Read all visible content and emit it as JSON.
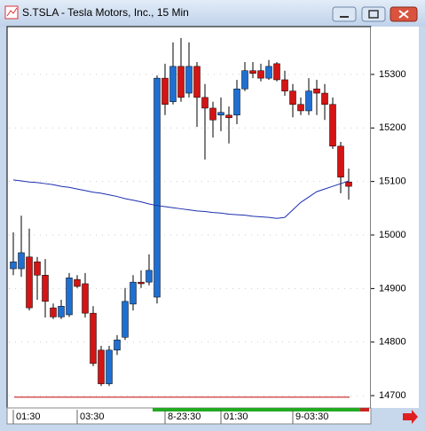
{
  "chart_data": {
    "type": "candlestick",
    "title": "S.TSLA - Tesla Motors, Inc., 15 Min",
    "categories": [
      "01:30",
      null,
      null,
      null,
      null,
      null,
      null,
      null,
      "03:30",
      null,
      null,
      null,
      null,
      null,
      null,
      null,
      null,
      null,
      null,
      "8-23:30",
      null,
      null,
      null,
      null,
      null,
      null,
      "01:30",
      null,
      null,
      null,
      null,
      null,
      null,
      null,
      null,
      "9-03:30",
      null,
      null,
      null,
      null,
      null,
      null,
      null
    ],
    "open": [
      14937,
      14937,
      14959,
      14950,
      14925,
      14864,
      14847,
      14851,
      14917,
      14909,
      14854,
      14785,
      14722,
      14785,
      14809,
      14871,
      14912,
      14912,
      14884,
      15293,
      15249,
      15315,
      15265,
      15315,
      15257,
      15237,
      15224,
      15224,
      15224,
      15273,
      15307,
      15307,
      15293,
      15320,
      15290,
      15269,
      15244,
      15232,
      15273,
      15265,
      15244,
      15166,
      15099
    ],
    "high": [
      15005,
      15036,
      15012,
      14959,
      14955,
      14872,
      14879,
      14929,
      14925,
      14929,
      14867,
      14793,
      14793,
      14813,
      14901,
      14925,
      14934,
      14964,
      15298,
      15320,
      15360,
      15368,
      15360,
      15323,
      15282,
      15249,
      15257,
      15240,
      15290,
      15323,
      15323,
      15320,
      15327,
      15323,
      15307,
      15282,
      15257,
      15293,
      15290,
      15282,
      15257,
      15174,
      15124
    ],
    "low": [
      14925,
      14922,
      14859,
      14879,
      14846,
      14843,
      14843,
      14847,
      14901,
      14846,
      14755,
      14718,
      14718,
      14776,
      14804,
      14859,
      14901,
      14906,
      14872,
      15224,
      15244,
      15249,
      15257,
      15202,
      15141,
      15182,
      15194,
      15171,
      15207,
      15269,
      15293,
      15287,
      15290,
      15287,
      15260,
      15220,
      15224,
      15224,
      15224,
      15215,
      15161,
      15078,
      15066
    ],
    "close": [
      14950,
      14967,
      14864,
      14925,
      14876,
      14847,
      14867,
      14920,
      14904,
      14854,
      14760,
      14722,
      14785,
      14804,
      14876,
      14912,
      14909,
      14934,
      15293,
      15244,
      15315,
      15257,
      15315,
      15257,
      15237,
      15215,
      15229,
      15219,
      15273,
      15307,
      15302,
      15293,
      15315,
      15290,
      15269,
      15244,
      15232,
      15269,
      15265,
      15244,
      15166,
      15108,
      15091
    ],
    "up_color": "#1f6fd1",
    "down_color": "#d41515",
    "moving_average": {
      "color": "#1c2fb0",
      "values": [
        15103,
        15101,
        15099,
        15098,
        15096,
        15094,
        15091,
        15089,
        15086,
        15083,
        15080,
        15078,
        15075,
        15072,
        15068,
        15065,
        15062,
        15058,
        15055,
        15053,
        15051,
        15049,
        15047,
        15045,
        15044,
        15042,
        15041,
        15039,
        15038,
        15037,
        15035,
        15034,
        15033,
        15031,
        15033,
        15047,
        15061,
        15071,
        15081,
        15086,
        15091,
        15096,
        15101
      ]
    },
    "reference_line": {
      "value": 14697,
      "color": "#c00000"
    },
    "ylim": [
      14677,
      15386
    ],
    "yticks": [
      14700,
      14800,
      14900,
      15000,
      15100,
      15200,
      15300
    ],
    "grid": true
  }
}
